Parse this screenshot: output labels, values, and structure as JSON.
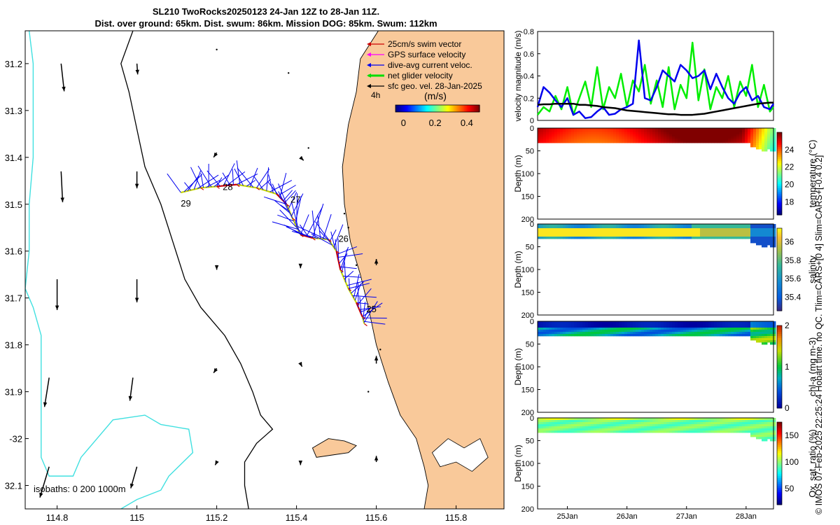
{
  "header": {
    "title_line1": "SL210 TwoRocks20250123 24-Jan 12Z to 28-Jan 11Z.",
    "title_line2": "Dist. over ground: 65km. Dist. swum: 86km. Mission DOG: 85km. Swum: 112km"
  },
  "side_note": "© IMOS 07-Feb-2025 22:25:24 Hobart time. no QC. Tlim=CARS+[0 4] Slim=CARS+[-0.4 0.2]",
  "colors": {
    "land": "#f9c99a",
    "isobath_200": "#000000",
    "isobath_1000": "#40e0e0",
    "track": "#c8d800",
    "current": "#0000ee",
    "swim": "#cc0000",
    "gps": "#ff00ff",
    "net": "#00dd00",
    "sfc": "#000000",
    "speed_line": "#00ee00"
  },
  "chart_data": [
    {
      "type": "map",
      "id": "track-map",
      "xlim": [
        114.72,
        115.92
      ],
      "ylim": [
        -32.15,
        -31.13
      ],
      "x_ticks": [
        114.8,
        115,
        115.2,
        115.4,
        115.6,
        115.8
      ],
      "x_tick_labels": [
        "114.8",
        "115",
        "115.2",
        "115.4",
        "115.6",
        "115.8"
      ],
      "y_ticks": [
        -31.2,
        -31.3,
        -31.4,
        -31.5,
        -31.6,
        -31.7,
        -31.8,
        -31.9,
        -32,
        -32.1
      ],
      "y_tick_labels": [
        "31.2",
        "31.3",
        "31.4",
        "31.5",
        "31.6",
        "31.7",
        "31.8",
        "31.9",
        "-32",
        "32.1"
      ],
      "legend": {
        "placement": "top-right",
        "items": [
          {
            "label": "25cm/s swim vector",
            "color": "#cc0000"
          },
          {
            "label": "GPS surface velocity",
            "color": "#ff00ff"
          },
          {
            "label": "dive-avg current veloc.",
            "color": "#0000ee"
          },
          {
            "label": "net glider velocity",
            "color": "#00dd00"
          },
          {
            "label": "sfc geo. vel. 28-Jan-2025",
            "color": "#000000"
          }
        ],
        "interval_label": "4h",
        "colorbar_title": "(m/s)",
        "colorbar_ticks": [
          "0",
          "0.2",
          "0.4"
        ],
        "colorbar_range": [
          -0.05,
          0.48
        ]
      },
      "isobath_label": "isobaths: 0   200  1000m",
      "track": [
        [
          115.11,
          -31.475
        ],
        [
          115.16,
          -31.465
        ],
        [
          115.2,
          -31.462
        ],
        [
          115.25,
          -31.458
        ],
        [
          115.3,
          -31.465
        ],
        [
          115.35,
          -31.478
        ],
        [
          115.375,
          -31.5
        ],
        [
          115.39,
          -31.53
        ],
        [
          115.41,
          -31.565
        ],
        [
          115.44,
          -31.572
        ],
        [
          115.48,
          -31.575
        ],
        [
          115.5,
          -31.6
        ],
        [
          115.51,
          -31.64
        ],
        [
          115.53,
          -31.68
        ],
        [
          115.55,
          -31.71
        ],
        [
          115.565,
          -31.74
        ],
        [
          115.57,
          -31.755
        ]
      ],
      "day_labels": [
        {
          "text": "25",
          "lon": 115.575,
          "lat": -31.73
        },
        {
          "text": "26",
          "lon": 115.505,
          "lat": -31.58
        },
        {
          "text": "27",
          "lon": 115.385,
          "lat": -31.497
        },
        {
          "text": "28",
          "lon": 115.215,
          "lat": -31.47
        },
        {
          "text": "29",
          "lon": 115.11,
          "lat": -31.505
        }
      ],
      "geo_vectors": [
        {
          "lon": 114.81,
          "lat": -31.2,
          "u": 0.02,
          "v": -0.18
        },
        {
          "lon": 115.0,
          "lat": -31.2,
          "u": 0.005,
          "v": -0.07
        },
        {
          "lon": 114.81,
          "lat": -31.43,
          "u": 0.01,
          "v": -0.2
        },
        {
          "lon": 115.0,
          "lat": -31.43,
          "u": 0.0,
          "v": -0.11
        },
        {
          "lon": 114.8,
          "lat": -31.66,
          "u": 0.0,
          "v": -0.2
        },
        {
          "lon": 115.0,
          "lat": -31.66,
          "u": 0.0,
          "v": -0.15
        },
        {
          "lon": 114.78,
          "lat": -31.87,
          "u": -0.03,
          "v": -0.19
        },
        {
          "lon": 114.99,
          "lat": -31.87,
          "u": -0.02,
          "v": -0.15
        },
        {
          "lon": 114.78,
          "lat": -32.06,
          "u": -0.06,
          "v": -0.2
        },
        {
          "lon": 115.0,
          "lat": -32.06,
          "u": -0.04,
          "v": -0.14
        },
        {
          "lon": 115.2,
          "lat": -31.39,
          "u": -0.02,
          "v": -0.03
        },
        {
          "lon": 115.41,
          "lat": -31.4,
          "u": 0.02,
          "v": -0.02
        },
        {
          "lon": 115.2,
          "lat": -31.63,
          "u": 0.0,
          "v": -0.03
        },
        {
          "lon": 115.41,
          "lat": -31.63,
          "u": 0.0,
          "v": -0.02
        },
        {
          "lon": 115.6,
          "lat": -31.63,
          "u": 0.0,
          "v": 0.04
        },
        {
          "lon": 115.2,
          "lat": -31.85,
          "u": -0.02,
          "v": -0.03
        },
        {
          "lon": 115.41,
          "lat": -31.84,
          "u": 0.01,
          "v": -0.02
        },
        {
          "lon": 115.6,
          "lat": -31.84,
          "u": 0.0,
          "v": 0.05
        },
        {
          "lon": 115.2,
          "lat": -32.05,
          "u": -0.01,
          "v": -0.02
        },
        {
          "lon": 115.41,
          "lat": -32.05,
          "u": 0.0,
          "v": -0.02
        },
        {
          "lon": 115.6,
          "lat": -32.05,
          "u": 0.0,
          "v": 0.04
        }
      ]
    },
    {
      "type": "line",
      "id": "velocity-magnitude",
      "ylabel": "velocity magnitude (m/s)",
      "ylim": [
        0,
        0.8
      ],
      "y_ticks": [
        0,
        0.2,
        0.4,
        0.6,
        0.8
      ],
      "xlim": [
        24.5,
        28.46
      ],
      "x": [
        24.5,
        24.6,
        24.7,
        24.8,
        24.9,
        25.0,
        25.1,
        25.2,
        25.3,
        25.4,
        25.5,
        25.6,
        25.7,
        25.8,
        25.9,
        26.0,
        26.1,
        26.2,
        26.3,
        26.4,
        26.5,
        26.6,
        26.7,
        26.8,
        26.9,
        27.0,
        27.1,
        27.2,
        27.3,
        27.4,
        27.5,
        27.6,
        27.7,
        27.8,
        27.9,
        28.0,
        28.1,
        28.2,
        28.3,
        28.4,
        28.46
      ],
      "series": [
        {
          "name": "net glider velocity",
          "color": "#00ee00",
          "values": [
            0.05,
            0.12,
            0.08,
            0.22,
            0.1,
            0.3,
            0.05,
            0.2,
            0.35,
            0.12,
            0.48,
            0.1,
            0.3,
            0.2,
            0.42,
            0.12,
            0.36,
            0.26,
            0.5,
            0.15,
            0.36,
            0.12,
            0.48,
            0.1,
            0.32,
            0.2,
            0.7,
            0.18,
            0.46,
            0.1,
            0.3,
            0.2,
            0.4,
            0.12,
            0.35,
            0.22,
            0.5,
            0.12,
            0.32,
            0.08,
            0.12
          ]
        },
        {
          "name": "dive-avg current veloc.",
          "color": "#0000ee",
          "values": [
            0.12,
            0.3,
            0.25,
            0.18,
            0.12,
            0.2,
            0.05,
            0.08,
            0.02,
            0.03,
            0.08,
            0.12,
            0.05,
            0.06,
            0.1,
            0.12,
            0.15,
            0.72,
            0.2,
            0.18,
            0.3,
            0.45,
            0.4,
            0.35,
            0.5,
            0.45,
            0.38,
            0.4,
            0.45,
            0.28,
            0.42,
            0.3,
            0.2,
            0.15,
            0.25,
            0.3,
            0.18,
            0.22,
            0.12,
            0.1,
            0.15
          ]
        },
        {
          "name": "sfc geo. vel.",
          "color": "#000000",
          "values": [
            0.14,
            0.145,
            0.145,
            0.15,
            0.15,
            0.15,
            0.15,
            0.14,
            0.14,
            0.135,
            0.13,
            0.12,
            0.115,
            0.11,
            0.1,
            0.09,
            0.085,
            0.08,
            0.075,
            0.07,
            0.065,
            0.06,
            0.055,
            0.055,
            0.05,
            0.05,
            0.05,
            0.055,
            0.06,
            0.07,
            0.08,
            0.09,
            0.1,
            0.11,
            0.12,
            0.13,
            0.14,
            0.15,
            0.155,
            0.16,
            0.16
          ]
        }
      ]
    },
    {
      "type": "heatmap",
      "id": "temperature-section",
      "ylabel": "Depth (m)",
      "colorbar_label": "temperature (°C)",
      "colorbar_ticks": [
        "24",
        "22",
        "20",
        "18"
      ],
      "colorbar_range": [
        16.5,
        26
      ],
      "ylim": [
        0,
        200
      ],
      "y_ticks": [
        "0",
        "50",
        "100",
        "150",
        "200"
      ]
    },
    {
      "type": "heatmap",
      "id": "salinity-section",
      "ylabel": "Depth (m)",
      "colorbar_label": "salinity",
      "colorbar_ticks": [
        "36",
        "35.8",
        "35.6",
        "35.4"
      ],
      "colorbar_range": [
        35.25,
        36.15
      ],
      "ylim": [
        0,
        200
      ],
      "y_ticks": [
        "0",
        "50",
        "100",
        "150",
        "200"
      ]
    },
    {
      "type": "heatmap",
      "id": "chla-section",
      "ylabel": "Depth (m)",
      "colorbar_label": "chl-a (mg m-3)",
      "colorbar_ticks": [
        "2",
        "1",
        "0"
      ],
      "colorbar_range": [
        0,
        2
      ],
      "ylim": [
        0,
        200
      ],
      "y_ticks": [
        "0",
        "50",
        "100",
        "150",
        "200"
      ]
    },
    {
      "type": "heatmap",
      "id": "oxygen-section",
      "ylabel": "Depth (m)",
      "colorbar_label": "Ox. sat. ratio (%)",
      "colorbar_ticks": [
        "150",
        "100",
        "50"
      ],
      "colorbar_range": [
        20,
        175
      ],
      "ylim": [
        0,
        200
      ],
      "y_ticks": [
        "0",
        "50",
        "100",
        "150",
        "200"
      ],
      "x_ticks": [
        25,
        26,
        27,
        28
      ],
      "x_tick_labels": [
        "25Jan",
        "26Jan",
        "27Jan",
        "28Jan"
      ]
    }
  ]
}
